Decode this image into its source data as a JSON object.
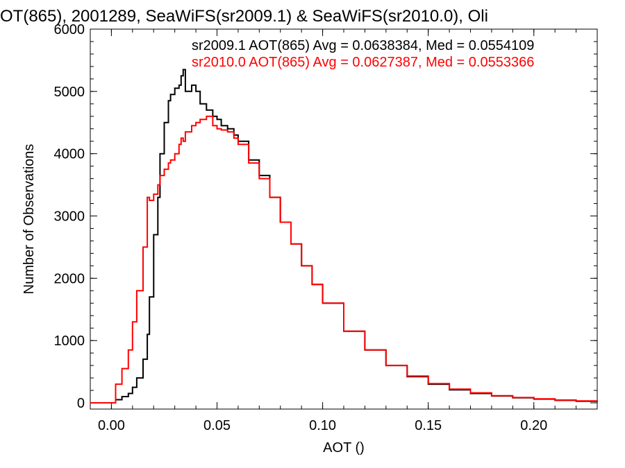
{
  "chart_data": {
    "type": "line",
    "title": "OT(865), 2001289, SeaWiFS(sr2009.1) & SeaWiFS(sr2010.0), Oli",
    "xlabel": "AOT ()",
    "ylabel": "Number of Observations",
    "xlim": [
      -0.01,
      0.23
    ],
    "ylim": [
      -100,
      6000
    ],
    "x_ticks": [
      0.0,
      0.05,
      0.1,
      0.15,
      0.2
    ],
    "x_tick_labels": [
      "0.00",
      "0.05",
      "0.10",
      "0.15",
      "0.20"
    ],
    "y_ticks": [
      0,
      1000,
      2000,
      3000,
      4000,
      5000,
      6000
    ],
    "y_tick_labels": [
      "0",
      "1000",
      "2000",
      "3000",
      "4000",
      "5000",
      "6000"
    ],
    "grid": false,
    "step": true,
    "annotations": [
      {
        "text": "sr2009.1 AOT(865) Avg = 0.0638384, Med = 0.0554109",
        "color": "#000000"
      },
      {
        "text": "sr2010.0 AOT(865) Avg = 0.0627387, Med = 0.0553366",
        "color": "#ff0000"
      }
    ],
    "series": [
      {
        "color": "#000000",
        "x": [
          -0.01,
          0.0,
          0.002,
          0.005,
          0.008,
          0.01,
          0.012,
          0.015,
          0.017,
          0.018,
          0.02,
          0.022,
          0.023,
          0.025,
          0.027,
          0.028,
          0.03,
          0.032,
          0.033,
          0.034,
          0.035,
          0.038,
          0.04,
          0.042,
          0.045,
          0.048,
          0.05,
          0.052,
          0.055,
          0.058,
          0.06,
          0.065,
          0.07,
          0.075,
          0.08,
          0.085,
          0.09,
          0.095,
          0.1,
          0.11,
          0.12,
          0.13,
          0.14,
          0.15,
          0.16,
          0.17,
          0.18,
          0.19,
          0.2,
          0.21,
          0.22,
          0.23
        ],
        "y": [
          0,
          0,
          50,
          100,
          150,
          250,
          400,
          700,
          1100,
          1700,
          2700,
          3300,
          4000,
          4500,
          4850,
          4950,
          5050,
          5100,
          5250,
          5350,
          5000,
          5100,
          5000,
          4800,
          4700,
          4600,
          4550,
          4450,
          4400,
          4300,
          4200,
          3900,
          3650,
          3300,
          2900,
          2550,
          2200,
          1900,
          1600,
          1150,
          850,
          600,
          420,
          300,
          210,
          150,
          110,
          80,
          60,
          40,
          25,
          15
        ]
      },
      {
        "color": "#ff0000",
        "x": [
          -0.01,
          0.0,
          0.002,
          0.005,
          0.008,
          0.01,
          0.012,
          0.015,
          0.017,
          0.018,
          0.02,
          0.022,
          0.023,
          0.025,
          0.027,
          0.028,
          0.03,
          0.032,
          0.033,
          0.034,
          0.035,
          0.038,
          0.04,
          0.042,
          0.045,
          0.048,
          0.05,
          0.052,
          0.055,
          0.058,
          0.06,
          0.065,
          0.07,
          0.075,
          0.08,
          0.085,
          0.09,
          0.095,
          0.1,
          0.11,
          0.12,
          0.13,
          0.14,
          0.15,
          0.16,
          0.17,
          0.18,
          0.19,
          0.2,
          0.21,
          0.22,
          0.23
        ],
        "y": [
          0,
          0,
          300,
          550,
          850,
          1300,
          1800,
          2500,
          3300,
          3250,
          3350,
          3500,
          3650,
          3750,
          3850,
          3900,
          4000,
          4150,
          4250,
          4200,
          4350,
          4450,
          4500,
          4550,
          4600,
          4450,
          4400,
          4380,
          4350,
          4250,
          4150,
          3850,
          3600,
          3300,
          2900,
          2550,
          2200,
          1900,
          1600,
          1150,
          850,
          600,
          430,
          310,
          220,
          160,
          115,
          85,
          65,
          45,
          30,
          20
        ]
      }
    ]
  }
}
